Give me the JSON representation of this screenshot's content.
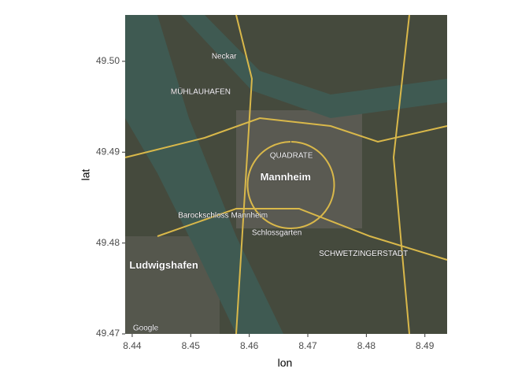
{
  "chart_data": {
    "type": "map",
    "xlabel": "lon",
    "ylabel": "lat",
    "xlim": [
      8.4388,
      8.4938
    ],
    "ylim": [
      49.47,
      49.5051
    ],
    "xticks": [
      8.44,
      8.45,
      8.46,
      8.47,
      8.48,
      8.49
    ],
    "yticks": [
      49.47,
      49.48,
      49.49,
      {
        "value": 49.5,
        "label": "49.50"
      }
    ],
    "annotations": [
      {
        "text": "Mannheim",
        "lon": 8.4662,
        "lat": 49.4872
      },
      {
        "text": "Ludwigshafen",
        "lon": 8.4454,
        "lat": 49.4775
      },
      {
        "text": "QUADRATE",
        "lon": 8.4672,
        "lat": 49.4896
      },
      {
        "text": "Barockschloss Mannheim",
        "lon": 8.4555,
        "lat": 49.483
      },
      {
        "text": "Schlossgarten",
        "lon": 8.4647,
        "lat": 49.4811
      },
      {
        "text": "MÜHLAUHAFEN",
        "lon": 8.4517,
        "lat": 49.4966
      },
      {
        "text": "SCHWETZINGERSTADT",
        "lon": 8.4795,
        "lat": 49.4788
      },
      {
        "text": "Neckar",
        "lon": 8.4557,
        "lat": 49.5005
      },
      {
        "text": "Google",
        "lon": 8.4423,
        "lat": 49.4706
      }
    ]
  }
}
